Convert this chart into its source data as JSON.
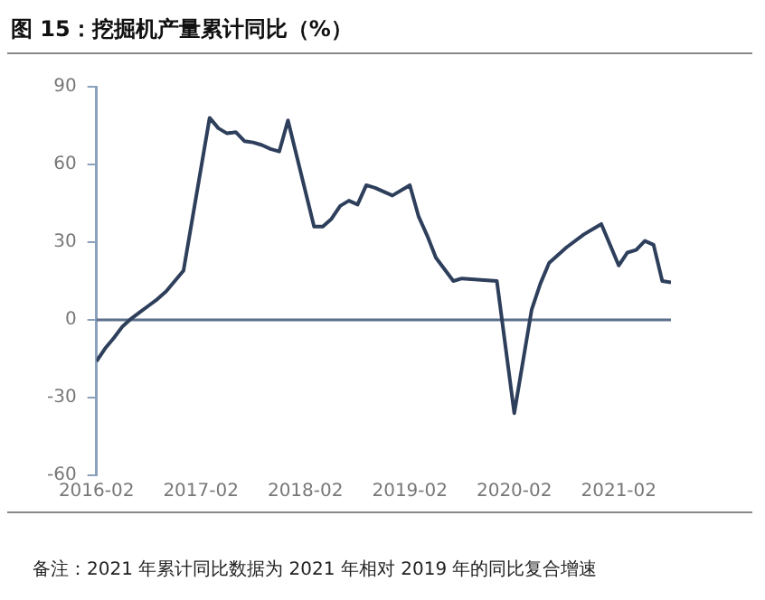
{
  "chart_data": {
    "type": "line",
    "title": "图 15：挖掘机产量累计同比（%）",
    "x": [
      "2016-02",
      "2016-03",
      "2016-04",
      "2016-05",
      "2016-06",
      "2016-07",
      "2016-08",
      "2016-09",
      "2016-10",
      "2016-11",
      "2016-12",
      "2017-03",
      "2017-04",
      "2017-05",
      "2017-06",
      "2017-07",
      "2017-08",
      "2017-09",
      "2017-10",
      "2017-11",
      "2017-12",
      "2018-03",
      "2018-04",
      "2018-05",
      "2018-06",
      "2018-07",
      "2018-08",
      "2018-09",
      "2018-10",
      "2018-12",
      "2019-02",
      "2019-03",
      "2019-04",
      "2019-05",
      "2019-07",
      "2019-08",
      "2019-12",
      "2020-02",
      "2020-04",
      "2020-05",
      "2020-06",
      "2020-08",
      "2020-10",
      "2020-12",
      "2021-02",
      "2021-03",
      "2021-04",
      "2021-05",
      "2021-06",
      "2021-07",
      "2021-08"
    ],
    "series": [
      {
        "color": "#2e3f5c",
        "values": [
          -16,
          -11,
          -7,
          -2.5,
          0.5,
          3,
          5.5,
          8,
          11,
          15,
          19,
          78,
          74,
          72,
          72.5,
          69,
          68.5,
          67.5,
          66,
          65,
          77,
          36,
          36,
          39,
          44,
          46,
          44.5,
          52,
          51,
          48,
          52,
          40,
          32.5,
          24,
          15,
          16,
          15,
          -36,
          4,
          14,
          22,
          28,
          33,
          37,
          21,
          26,
          27,
          30.5,
          29,
          15,
          14.5
        ]
      }
    ],
    "xlim": [
      "2016-02",
      "2021-08"
    ],
    "xticks": [
      "2016-02",
      "2017-02",
      "2018-02",
      "2019-02",
      "2020-02",
      "2021-02"
    ],
    "ylim": [
      -60,
      90
    ],
    "yticks": [
      -60,
      -30,
      0,
      30,
      60,
      90
    ],
    "ref_lines": [
      {
        "axis": "y",
        "value": 0,
        "color": "#5b6f8a"
      }
    ],
    "grid": false,
    "legend": false,
    "marker": "none",
    "line_style": "solid",
    "annotations": [
      "备注：2021 年累计同比数据为 2021 年相对 2019 年的同比复合增速"
    ]
  }
}
